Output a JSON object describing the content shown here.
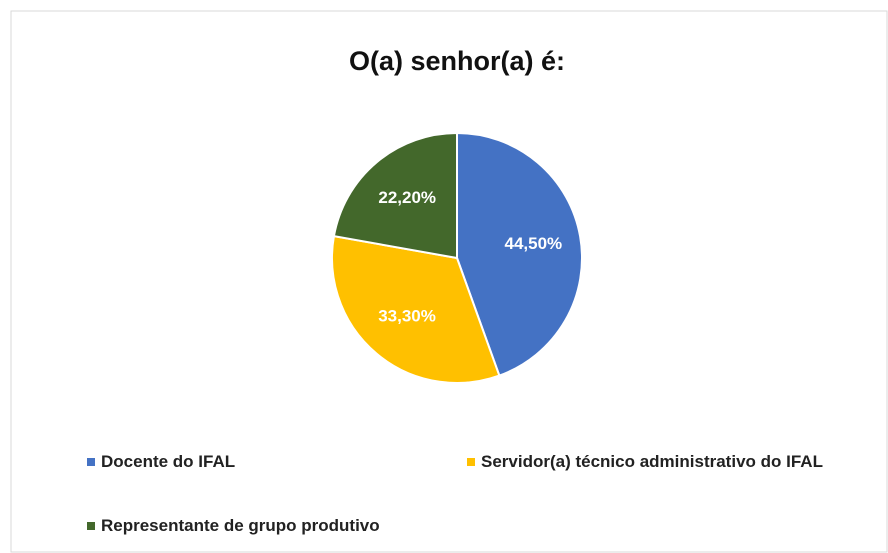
{
  "chart_data": {
    "type": "pie",
    "title": "O(a) senhor(a) é:",
    "categories": [
      "Docente do IFAL",
      "Servidor(a) técnico administrativo do IFAL",
      "Representante de grupo produtivo"
    ],
    "values": [
      44.5,
      33.3,
      22.2
    ],
    "value_labels": [
      "44,50%",
      "33,30%",
      "22,20%"
    ],
    "colors": [
      "#4472c4",
      "#ffc000",
      "#43682b"
    ],
    "legend": "bottom"
  }
}
